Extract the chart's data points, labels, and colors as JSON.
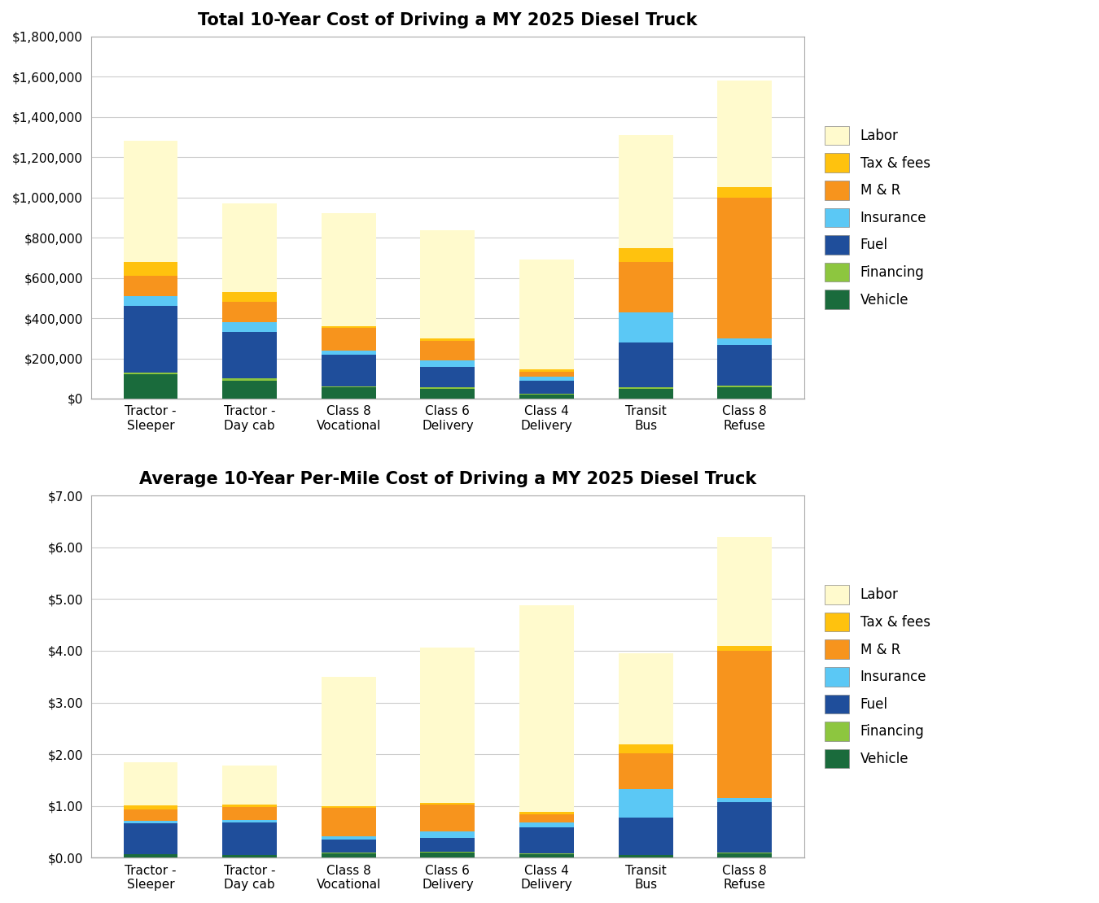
{
  "title1": "Total 10-Year Cost of Driving a MY 2025 Diesel Truck",
  "title2": "Average 10-Year Per-Mile Cost of Driving a MY 2025 Diesel Truck",
  "categories": [
    "Tractor -\nSleeper",
    "Tractor -\nDay cab",
    "Class 8\nVocational",
    "Class 6\nDelivery",
    "Class 4\nDelivery",
    "Transit\nBus",
    "Class 8\nRefuse"
  ],
  "legend_labels": [
    "Labor",
    "Tax & fees",
    "M & R",
    "Insurance",
    "Fuel",
    "Financing",
    "Vehicle"
  ],
  "colors": {
    "Vehicle": "#1a6b3c",
    "Financing": "#8dc63f",
    "Fuel": "#1f4e9b",
    "Insurance": "#5bc8f5",
    "M & R": "#f7941d",
    "Tax & fees": "#ffc20e",
    "Labor": "#fffacd"
  },
  "total_data": {
    "Vehicle": [
      120000,
      90000,
      55000,
      50000,
      20000,
      50000,
      55000
    ],
    "Financing": [
      10000,
      10000,
      5000,
      8000,
      5000,
      5000,
      10000
    ],
    "Fuel": [
      330000,
      230000,
      160000,
      100000,
      65000,
      225000,
      200000
    ],
    "Insurance": [
      50000,
      50000,
      20000,
      30000,
      20000,
      150000,
      35000
    ],
    "M & R": [
      100000,
      100000,
      110000,
      100000,
      25000,
      250000,
      700000
    ],
    "Tax & fees": [
      70000,
      50000,
      10000,
      10000,
      10000,
      70000,
      50000
    ],
    "Labor": [
      600000,
      440000,
      560000,
      540000,
      545000,
      560000,
      530000
    ]
  },
  "permile_data": {
    "Vehicle": [
      0.06,
      0.05,
      0.09,
      0.1,
      0.07,
      0.05,
      0.09
    ],
    "Financing": [
      0.005,
      0.005,
      0.01,
      0.01,
      0.01,
      0.005,
      0.01
    ],
    "Fuel": [
      0.6,
      0.62,
      0.25,
      0.27,
      0.5,
      0.72,
      0.98
    ],
    "Insurance": [
      0.05,
      0.05,
      0.07,
      0.12,
      0.1,
      0.55,
      0.07
    ],
    "M & R": [
      0.22,
      0.25,
      0.55,
      0.53,
      0.15,
      0.7,
      2.85
    ],
    "Tax & fees": [
      0.07,
      0.05,
      0.03,
      0.03,
      0.05,
      0.17,
      0.1
    ],
    "Labor": [
      0.84,
      0.76,
      2.5,
      3.0,
      4.0,
      1.75,
      2.1
    ]
  },
  "ylim1": [
    0,
    1800000
  ],
  "ylim2": [
    0,
    7.0
  ],
  "yticks1": [
    0,
    200000,
    400000,
    600000,
    800000,
    1000000,
    1200000,
    1400000,
    1600000,
    1800000
  ],
  "yticks2": [
    0.0,
    1.0,
    2.0,
    3.0,
    4.0,
    5.0,
    6.0,
    7.0
  ],
  "bar_width": 0.55,
  "title_fontsize": 15,
  "tick_fontsize": 11,
  "legend_fontsize": 12,
  "background_color": "#ffffff",
  "grid_color": "#cccccc",
  "border_color": "#aaaaaa"
}
